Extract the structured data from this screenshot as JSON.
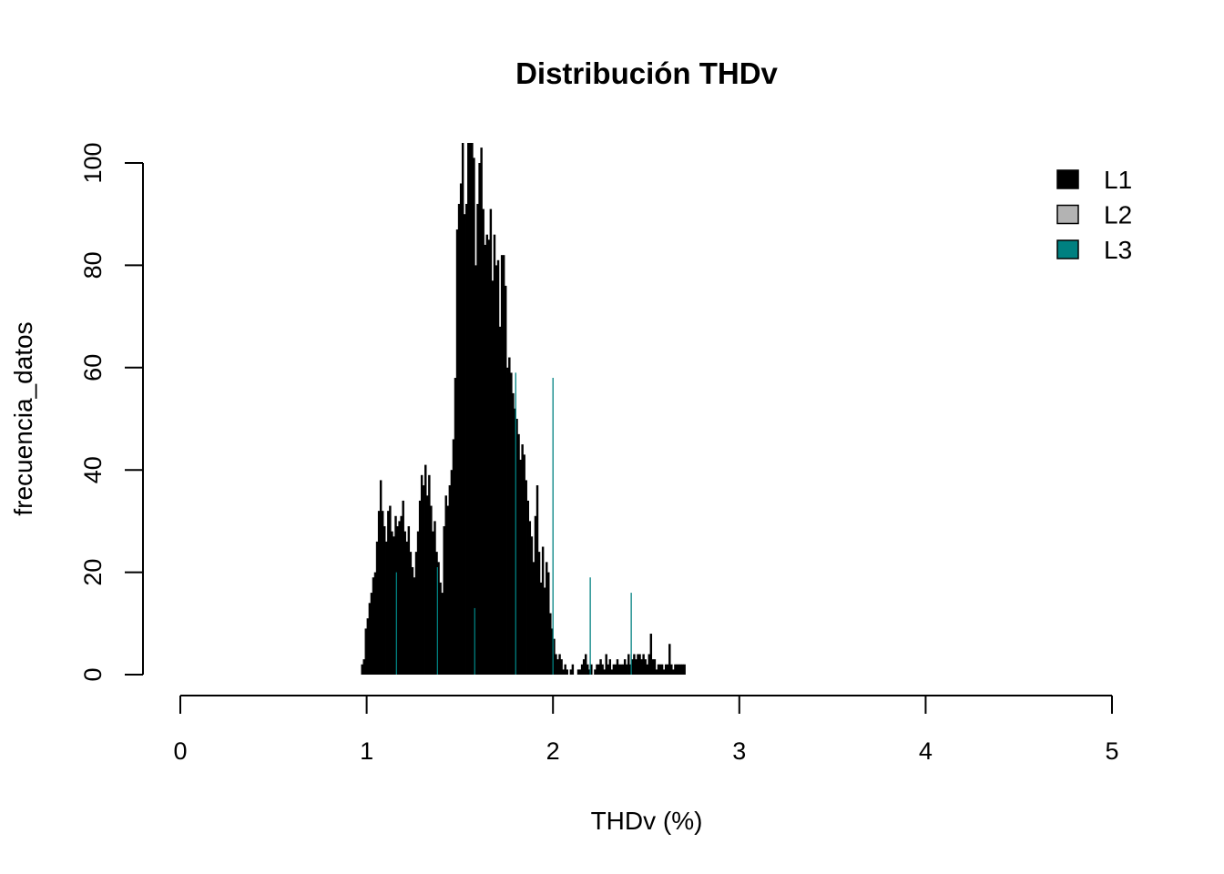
{
  "chart_data": {
    "type": "bar",
    "title": "Distribución THDv",
    "xlabel": "THDv (%)",
    "ylabel": "frecuencia_datos",
    "xlim": [
      0,
      5
    ],
    "ylim": [
      0,
      100
    ],
    "x_ticks": [
      "0",
      "1",
      "2",
      "3",
      "4",
      "5"
    ],
    "y_ticks": [
      "0",
      "20",
      "40",
      "60",
      "80",
      "100"
    ],
    "grid": false,
    "legend_position": "top-right",
    "bin_width": 0.01,
    "series": [
      {
        "name": "L1",
        "color": "#000000",
        "x_start": 0.97,
        "values": [
          2,
          3,
          9,
          11,
          14,
          16,
          19,
          20,
          26,
          32,
          38,
          32,
          29,
          26,
          32,
          33,
          28,
          27,
          31,
          29,
          30,
          31,
          34,
          28,
          26,
          29,
          24,
          21,
          19,
          24,
          28,
          34,
          39,
          37,
          41,
          35,
          39,
          33,
          28,
          30,
          24,
          22,
          18,
          16,
          29,
          35,
          33,
          37,
          40,
          46,
          58,
          87,
          92,
          96,
          104,
          90,
          92,
          106,
          104,
          104,
          101,
          80,
          92,
          100,
          103,
          91,
          84,
          86,
          85,
          91,
          77,
          86,
          80,
          81,
          68,
          82,
          82,
          76,
          60,
          62,
          59,
          55,
          52,
          50,
          47,
          42,
          45,
          43,
          38,
          34,
          30,
          27,
          22,
          31,
          37,
          24,
          18,
          25,
          17,
          22,
          20,
          12,
          9,
          7,
          4,
          3,
          4,
          3,
          1,
          2,
          1,
          0,
          1,
          2,
          0,
          0,
          1,
          1,
          2,
          3,
          4,
          2,
          1,
          2,
          0,
          1,
          2,
          2,
          3,
          2,
          1,
          4,
          2,
          3,
          1,
          2,
          2,
          3,
          2,
          2,
          2,
          3,
          2,
          4,
          2,
          3,
          4,
          3,
          4,
          4,
          3,
          4,
          3,
          2,
          4,
          8,
          3,
          3,
          1,
          2,
          2,
          2,
          1,
          2,
          2,
          6,
          2,
          1,
          2,
          2,
          2,
          2,
          2,
          2
        ]
      },
      {
        "name": "L2",
        "color": "#b3b3b3",
        "values": []
      },
      {
        "name": "L3",
        "color": "#008080",
        "x": [
          1.16,
          1.38,
          1.58,
          1.8,
          2.0,
          2.2,
          2.42
        ],
        "values": [
          20,
          21,
          13,
          59,
          58,
          19,
          16
        ]
      }
    ]
  }
}
